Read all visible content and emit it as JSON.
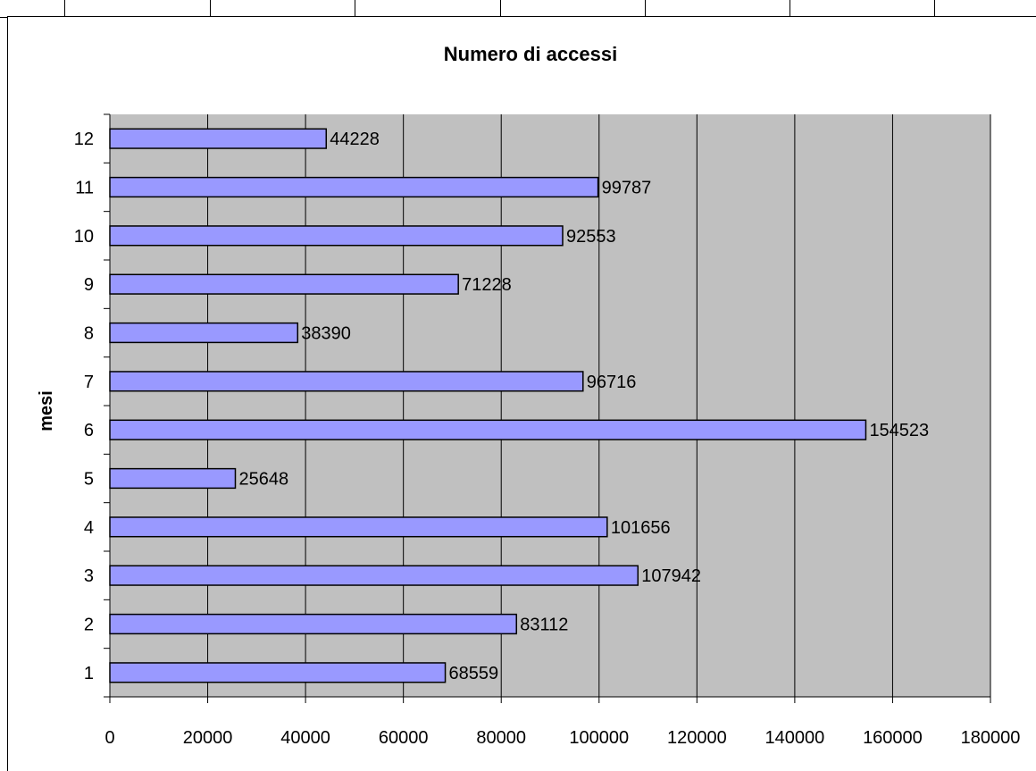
{
  "chart_data": {
    "type": "bar",
    "orientation": "horizontal",
    "title": "Numero di accessi",
    "ylabel": "mesi",
    "xlabel": "",
    "categories": [
      "1",
      "2",
      "3",
      "4",
      "5",
      "6",
      "7",
      "8",
      "9",
      "10",
      "11",
      "12"
    ],
    "values": [
      68559,
      83112,
      107942,
      101656,
      25648,
      154523,
      96716,
      38390,
      71228,
      92553,
      99787,
      44228
    ],
    "data_labels": [
      "68559",
      "83112",
      "107942",
      "101656",
      "25648",
      "154523",
      "96716",
      "38390",
      "71228",
      "92553",
      "99787",
      "44228"
    ],
    "xlim": [
      0,
      180000
    ],
    "x_ticks": [
      "0",
      "20000",
      "40000",
      "60000",
      "80000",
      "100000",
      "120000",
      "140000",
      "160000",
      "180000"
    ],
    "grid": "vertical",
    "legend": "none",
    "colors": {
      "bar_fill": "#9999ff",
      "bar_stroke": "#000000",
      "plot_bg": "#c0c0c0",
      "grid": "#000000"
    }
  }
}
